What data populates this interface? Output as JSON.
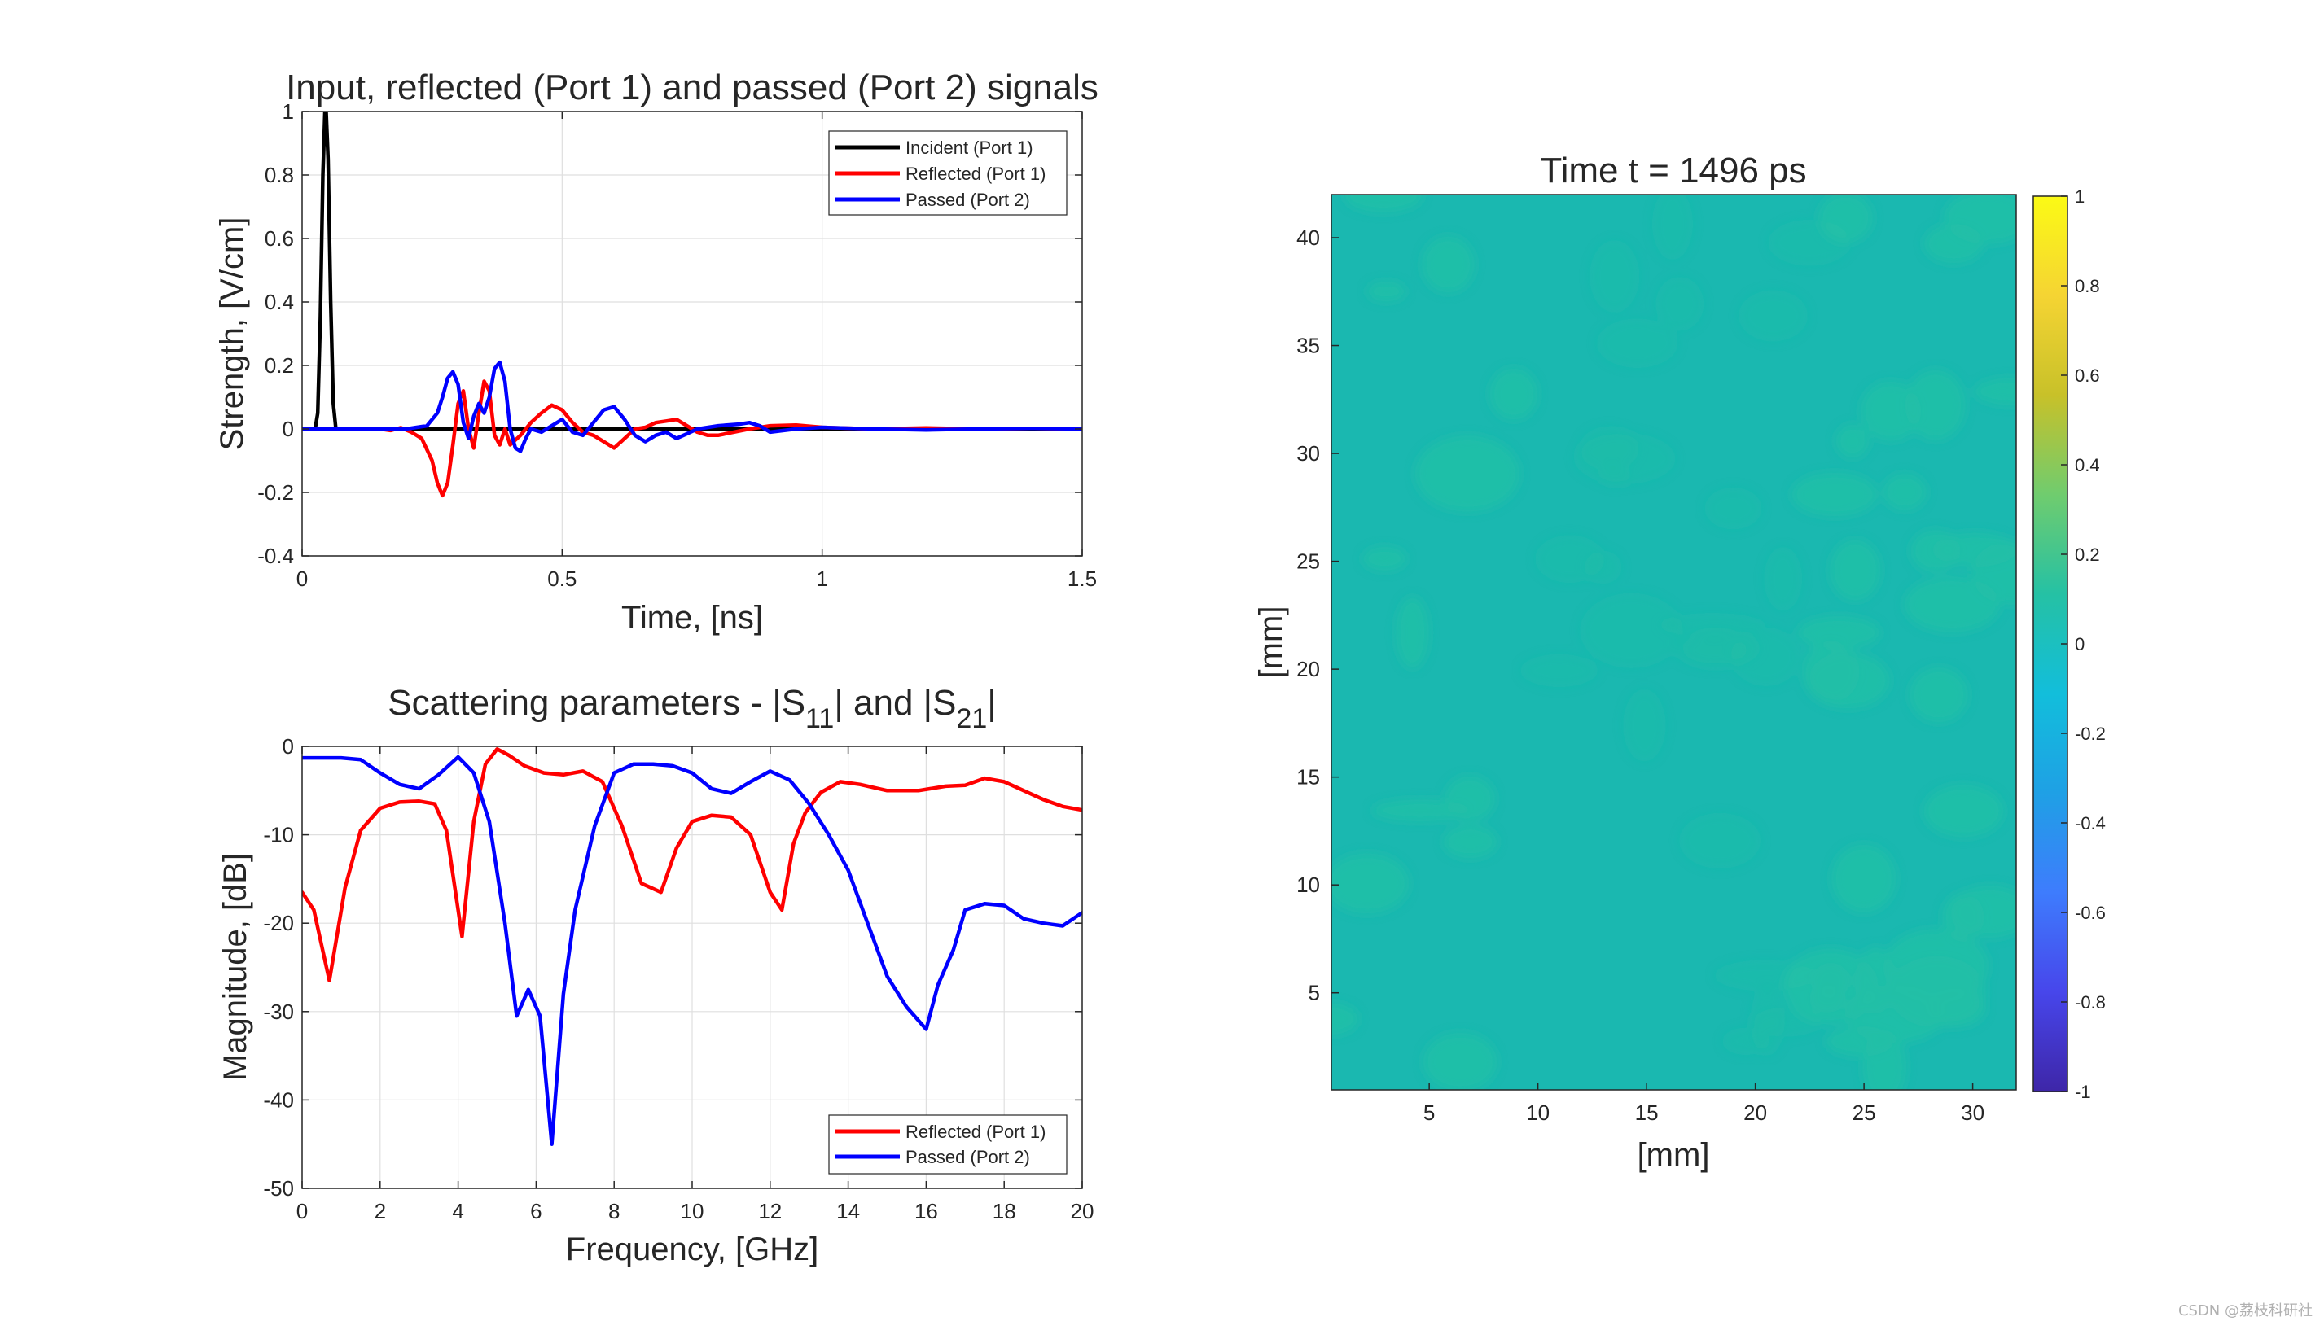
{
  "watermark": "CSDN @荔枝科研社",
  "colors": {
    "incident": "#000000",
    "reflected": "#ff0000",
    "passed": "#0000ff",
    "grid": "#dfdfdf",
    "axis": "#262626",
    "field": "#1ab8b0",
    "field_light": "#22bfa7"
  },
  "chart_data": [
    {
      "type": "line",
      "title": "Input, reflected (Port 1) and passed (Port 2) signals",
      "xlabel": "Time, [ns]",
      "ylabel": "Strength, [V/cm]",
      "xlim": [
        0,
        1.5
      ],
      "ylim": [
        -0.4,
        1
      ],
      "xticks": [
        0,
        0.5,
        1,
        1.5
      ],
      "xtick_labels": [
        "0",
        "0.5",
        "1",
        "1.5"
      ],
      "yticks": [
        -0.4,
        -0.2,
        0,
        0.2,
        0.4,
        0.6,
        0.8,
        1
      ],
      "ytick_labels": [
        "-0.4",
        "-0.2",
        "0",
        "0.2",
        "0.4",
        "0.6",
        "0.8",
        "1"
      ],
      "grid": true,
      "legend_position": "top-right",
      "series": [
        {
          "name": "Incident (Port 1)",
          "color": "#000000",
          "x": [
            0,
            0.025,
            0.03,
            0.035,
            0.04,
            0.045,
            0.05,
            0.055,
            0.06,
            0.065,
            0.07,
            1.5
          ],
          "y": [
            0,
            0,
            0.05,
            0.35,
            0.8,
            1.05,
            0.85,
            0.4,
            0.08,
            0,
            0,
            0
          ]
        },
        {
          "name": "Reflected (Port 1)",
          "color": "#ff0000",
          "x": [
            0,
            0.15,
            0.17,
            0.19,
            0.21,
            0.23,
            0.25,
            0.26,
            0.27,
            0.28,
            0.29,
            0.3,
            0.31,
            0.32,
            0.33,
            0.34,
            0.35,
            0.36,
            0.37,
            0.38,
            0.39,
            0.4,
            0.42,
            0.44,
            0.46,
            0.48,
            0.5,
            0.52,
            0.54,
            0.56,
            0.58,
            0.6,
            0.62,
            0.64,
            0.66,
            0.68,
            0.7,
            0.72,
            0.74,
            0.76,
            0.78,
            0.8,
            0.83,
            0.86,
            0.9,
            0.95,
            1.0,
            1.1,
            1.2,
            1.3,
            1.4,
            1.5
          ],
          "y": [
            0,
            0,
            -0.005,
            0.004,
            -0.01,
            -0.03,
            -0.1,
            -0.17,
            -0.21,
            -0.17,
            -0.05,
            0.08,
            0.12,
            0.0,
            -0.06,
            0.05,
            0.15,
            0.12,
            -0.02,
            -0.05,
            0.0,
            -0.05,
            -0.02,
            0.02,
            0.05,
            0.075,
            0.06,
            0.02,
            -0.01,
            -0.02,
            -0.04,
            -0.06,
            -0.03,
            0.0,
            0.005,
            0.02,
            0.025,
            0.03,
            0.01,
            -0.01,
            -0.02,
            -0.02,
            -0.01,
            0.0,
            0.01,
            0.012,
            0.005,
            0.0,
            0.003,
            0.0,
            0.002,
            0.0
          ]
        },
        {
          "name": "Passed (Port 2)",
          "color": "#0000ff",
          "x": [
            0,
            0.2,
            0.24,
            0.26,
            0.27,
            0.28,
            0.29,
            0.3,
            0.31,
            0.32,
            0.33,
            0.34,
            0.35,
            0.36,
            0.37,
            0.38,
            0.39,
            0.4,
            0.41,
            0.42,
            0.43,
            0.44,
            0.46,
            0.48,
            0.5,
            0.52,
            0.54,
            0.56,
            0.58,
            0.6,
            0.62,
            0.64,
            0.66,
            0.68,
            0.7,
            0.72,
            0.74,
            0.76,
            0.8,
            0.84,
            0.86,
            0.88,
            0.9,
            0.95,
            1.0,
            1.1,
            1.2,
            1.3,
            1.4,
            1.5
          ],
          "y": [
            0,
            0,
            0.01,
            0.05,
            0.1,
            0.16,
            0.18,
            0.14,
            0.02,
            -0.03,
            0.04,
            0.08,
            0.05,
            0.1,
            0.19,
            0.21,
            0.15,
            0.0,
            -0.06,
            -0.07,
            -0.03,
            0.0,
            -0.01,
            0.01,
            0.03,
            -0.01,
            -0.02,
            0.02,
            0.06,
            0.07,
            0.03,
            -0.02,
            -0.04,
            -0.02,
            -0.01,
            -0.03,
            -0.015,
            0.0,
            0.01,
            0.015,
            0.02,
            0.01,
            -0.01,
            0.0,
            0.005,
            0.0,
            -0.003,
            0.0,
            0.002,
            0.0
          ]
        }
      ]
    },
    {
      "type": "line",
      "title": "Scattering parameters - |S11| and |S21|",
      "title_parts": [
        "Scattering parameters - |S",
        "11",
        "| and |S",
        "21",
        "|"
      ],
      "xlabel": "Frequency, [GHz]",
      "ylabel": "Magnitude, [dB]",
      "xlim": [
        0,
        20
      ],
      "ylim": [
        -50,
        0
      ],
      "xticks": [
        0,
        2,
        4,
        6,
        8,
        10,
        12,
        14,
        16,
        18,
        20
      ],
      "xtick_labels": [
        "0",
        "2",
        "4",
        "6",
        "8",
        "10",
        "12",
        "14",
        "16",
        "18",
        "20"
      ],
      "yticks": [
        -50,
        -40,
        -30,
        -20,
        -10,
        0
      ],
      "ytick_labels": [
        "-50",
        "-40",
        "-30",
        "-20",
        "-10",
        "0"
      ],
      "grid": true,
      "legend_position": "bottom-right",
      "series": [
        {
          "name": "Reflected (Port 1)",
          "color": "#ff0000",
          "x": [
            0,
            0.3,
            0.7,
            1.1,
            1.5,
            2.0,
            2.5,
            3.0,
            3.4,
            3.7,
            4.1,
            4.4,
            4.7,
            5.0,
            5.3,
            5.7,
            6.2,
            6.7,
            7.2,
            7.7,
            8.2,
            8.7,
            9.2,
            9.6,
            10.0,
            10.5,
            11.0,
            11.5,
            12.0,
            12.3,
            12.6,
            12.9,
            13.3,
            13.8,
            14.3,
            15.0,
            15.8,
            16.5,
            17.0,
            17.5,
            18.0,
            18.5,
            19.0,
            19.5,
            20.0
          ],
          "y": [
            -16.5,
            -18.5,
            -26.5,
            -16,
            -9.5,
            -7,
            -6.3,
            -6.2,
            -6.5,
            -9.5,
            -21.5,
            -8.5,
            -2.0,
            -0.3,
            -1.0,
            -2.2,
            -3.0,
            -3.2,
            -2.8,
            -4.0,
            -9.0,
            -15.5,
            -16.5,
            -11.5,
            -8.5,
            -7.8,
            -8.0,
            -10.0,
            -16.5,
            -18.5,
            -11,
            -7.5,
            -5.2,
            -4.0,
            -4.3,
            -5.0,
            -5.0,
            -4.5,
            -4.4,
            -3.6,
            -4.0,
            -5.0,
            -6.0,
            -6.8,
            -7.2
          ]
        },
        {
          "name": "Passed (Port 2)",
          "color": "#0000ff",
          "x": [
            0,
            0.5,
            1.0,
            1.5,
            2.0,
            2.5,
            3.0,
            3.5,
            4.0,
            4.4,
            4.8,
            5.2,
            5.5,
            5.8,
            6.1,
            6.4,
            6.7,
            7.0,
            7.5,
            8.0,
            8.5,
            9.0,
            9.5,
            10.0,
            10.5,
            11.0,
            11.5,
            12.0,
            12.5,
            13.0,
            13.5,
            14.0,
            14.5,
            15.0,
            15.5,
            16.0,
            16.3,
            16.7,
            17.0,
            17.5,
            18.0,
            18.5,
            19.0,
            19.5,
            20.0
          ],
          "y": [
            -1.3,
            -1.3,
            -1.3,
            -1.5,
            -3.0,
            -4.3,
            -4.8,
            -3.2,
            -1.2,
            -3.0,
            -8.5,
            -20,
            -30.5,
            -27.5,
            -30.5,
            -45,
            -28,
            -18.5,
            -9,
            -3.0,
            -2.0,
            -2.0,
            -2.2,
            -3.0,
            -4.8,
            -5.3,
            -4.0,
            -2.8,
            -3.8,
            -6.5,
            -10,
            -14,
            -20,
            -26,
            -29.5,
            -32,
            -27,
            -23,
            -18.5,
            -17.8,
            -18.0,
            -19.5,
            -20.0,
            -20.3,
            -18.8
          ]
        }
      ]
    },
    {
      "type": "heatmap",
      "title": "Time t = 1496 ps",
      "xlabel": "[mm]",
      "ylabel": "[mm]",
      "xlim": [
        0.5,
        32
      ],
      "ylim": [
        0.5,
        42
      ],
      "xticks": [
        5,
        10,
        15,
        20,
        25,
        30
      ],
      "xtick_labels": [
        "5",
        "10",
        "15",
        "20",
        "25",
        "30"
      ],
      "yticks": [
        5,
        10,
        15,
        20,
        25,
        30,
        35,
        40
      ],
      "ytick_labels": [
        "5",
        "10",
        "15",
        "20",
        "25",
        "30",
        "35",
        "40"
      ],
      "clim": [
        -1,
        1
      ],
      "colorbar_ticks": [
        -1,
        -0.8,
        -0.6,
        -0.4,
        -0.2,
        0,
        0.2,
        0.4,
        0.6,
        0.8,
        1
      ],
      "colorbar_labels": [
        "-1",
        "-0.8",
        "-0.6",
        "-0.4",
        "-0.2",
        "0",
        "0.2",
        "0.4",
        "0.6",
        "0.8",
        "1"
      ],
      "colormap_stops": [
        "#3e26a8",
        "#4746eb",
        "#3e7cfd",
        "#1fa0e5",
        "#12bedb",
        "#25c1a4",
        "#70cc6e",
        "#c8c129",
        "#f5d433",
        "#fbfa15"
      ],
      "field_value_range": [
        0.0,
        0.08
      ]
    }
  ]
}
